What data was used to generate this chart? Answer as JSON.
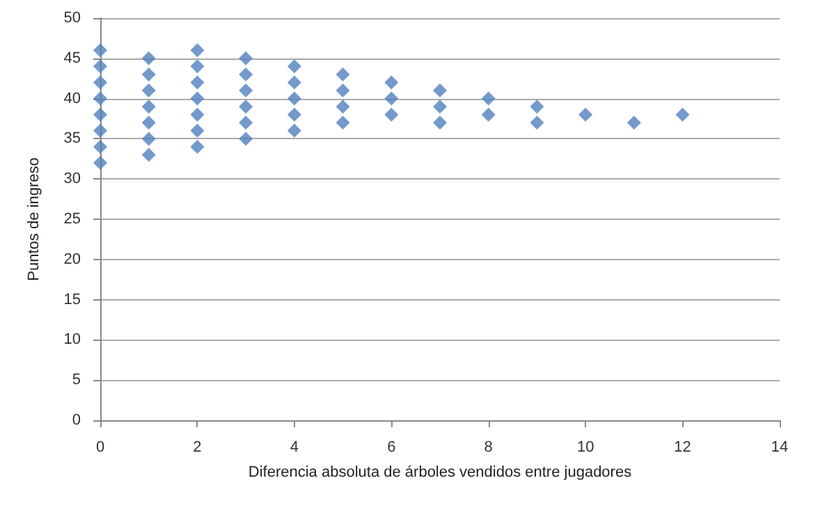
{
  "chart_data": {
    "type": "scatter",
    "xlabel": "Diferencia absoluta de árboles vendidos entre jugadores",
    "ylabel": "Puntos de ingreso",
    "x": [
      0,
      0,
      0,
      0,
      0,
      0,
      0,
      0,
      1,
      1,
      1,
      1,
      1,
      1,
      1,
      2,
      2,
      2,
      2,
      2,
      2,
      2,
      3,
      3,
      3,
      3,
      3,
      3,
      4,
      4,
      4,
      4,
      4,
      5,
      5,
      5,
      5,
      6,
      6,
      6,
      7,
      7,
      7,
      8,
      8,
      9,
      9,
      10,
      11,
      12
    ],
    "values": [
      46,
      44,
      42,
      40,
      38,
      36,
      34,
      32,
      45,
      43,
      41,
      39,
      37,
      35,
      33,
      46,
      44,
      42,
      40,
      38,
      36,
      34,
      45,
      43,
      41,
      39,
      37,
      35,
      44,
      42,
      40,
      38,
      36,
      43,
      41,
      39,
      37,
      42,
      40,
      38,
      41,
      39,
      37,
      40,
      38,
      39,
      37,
      38,
      37,
      38
    ],
    "color": "#4f81bd",
    "marker": "diamond",
    "xlim": [
      0,
      14
    ],
    "xticks": [
      0,
      2,
      4,
      6,
      8,
      10,
      12,
      14
    ],
    "ylim": [
      0,
      50
    ],
    "yticks": [
      0,
      5,
      10,
      15,
      20,
      25,
      30,
      35,
      40,
      45,
      50
    ],
    "grid": "y"
  }
}
